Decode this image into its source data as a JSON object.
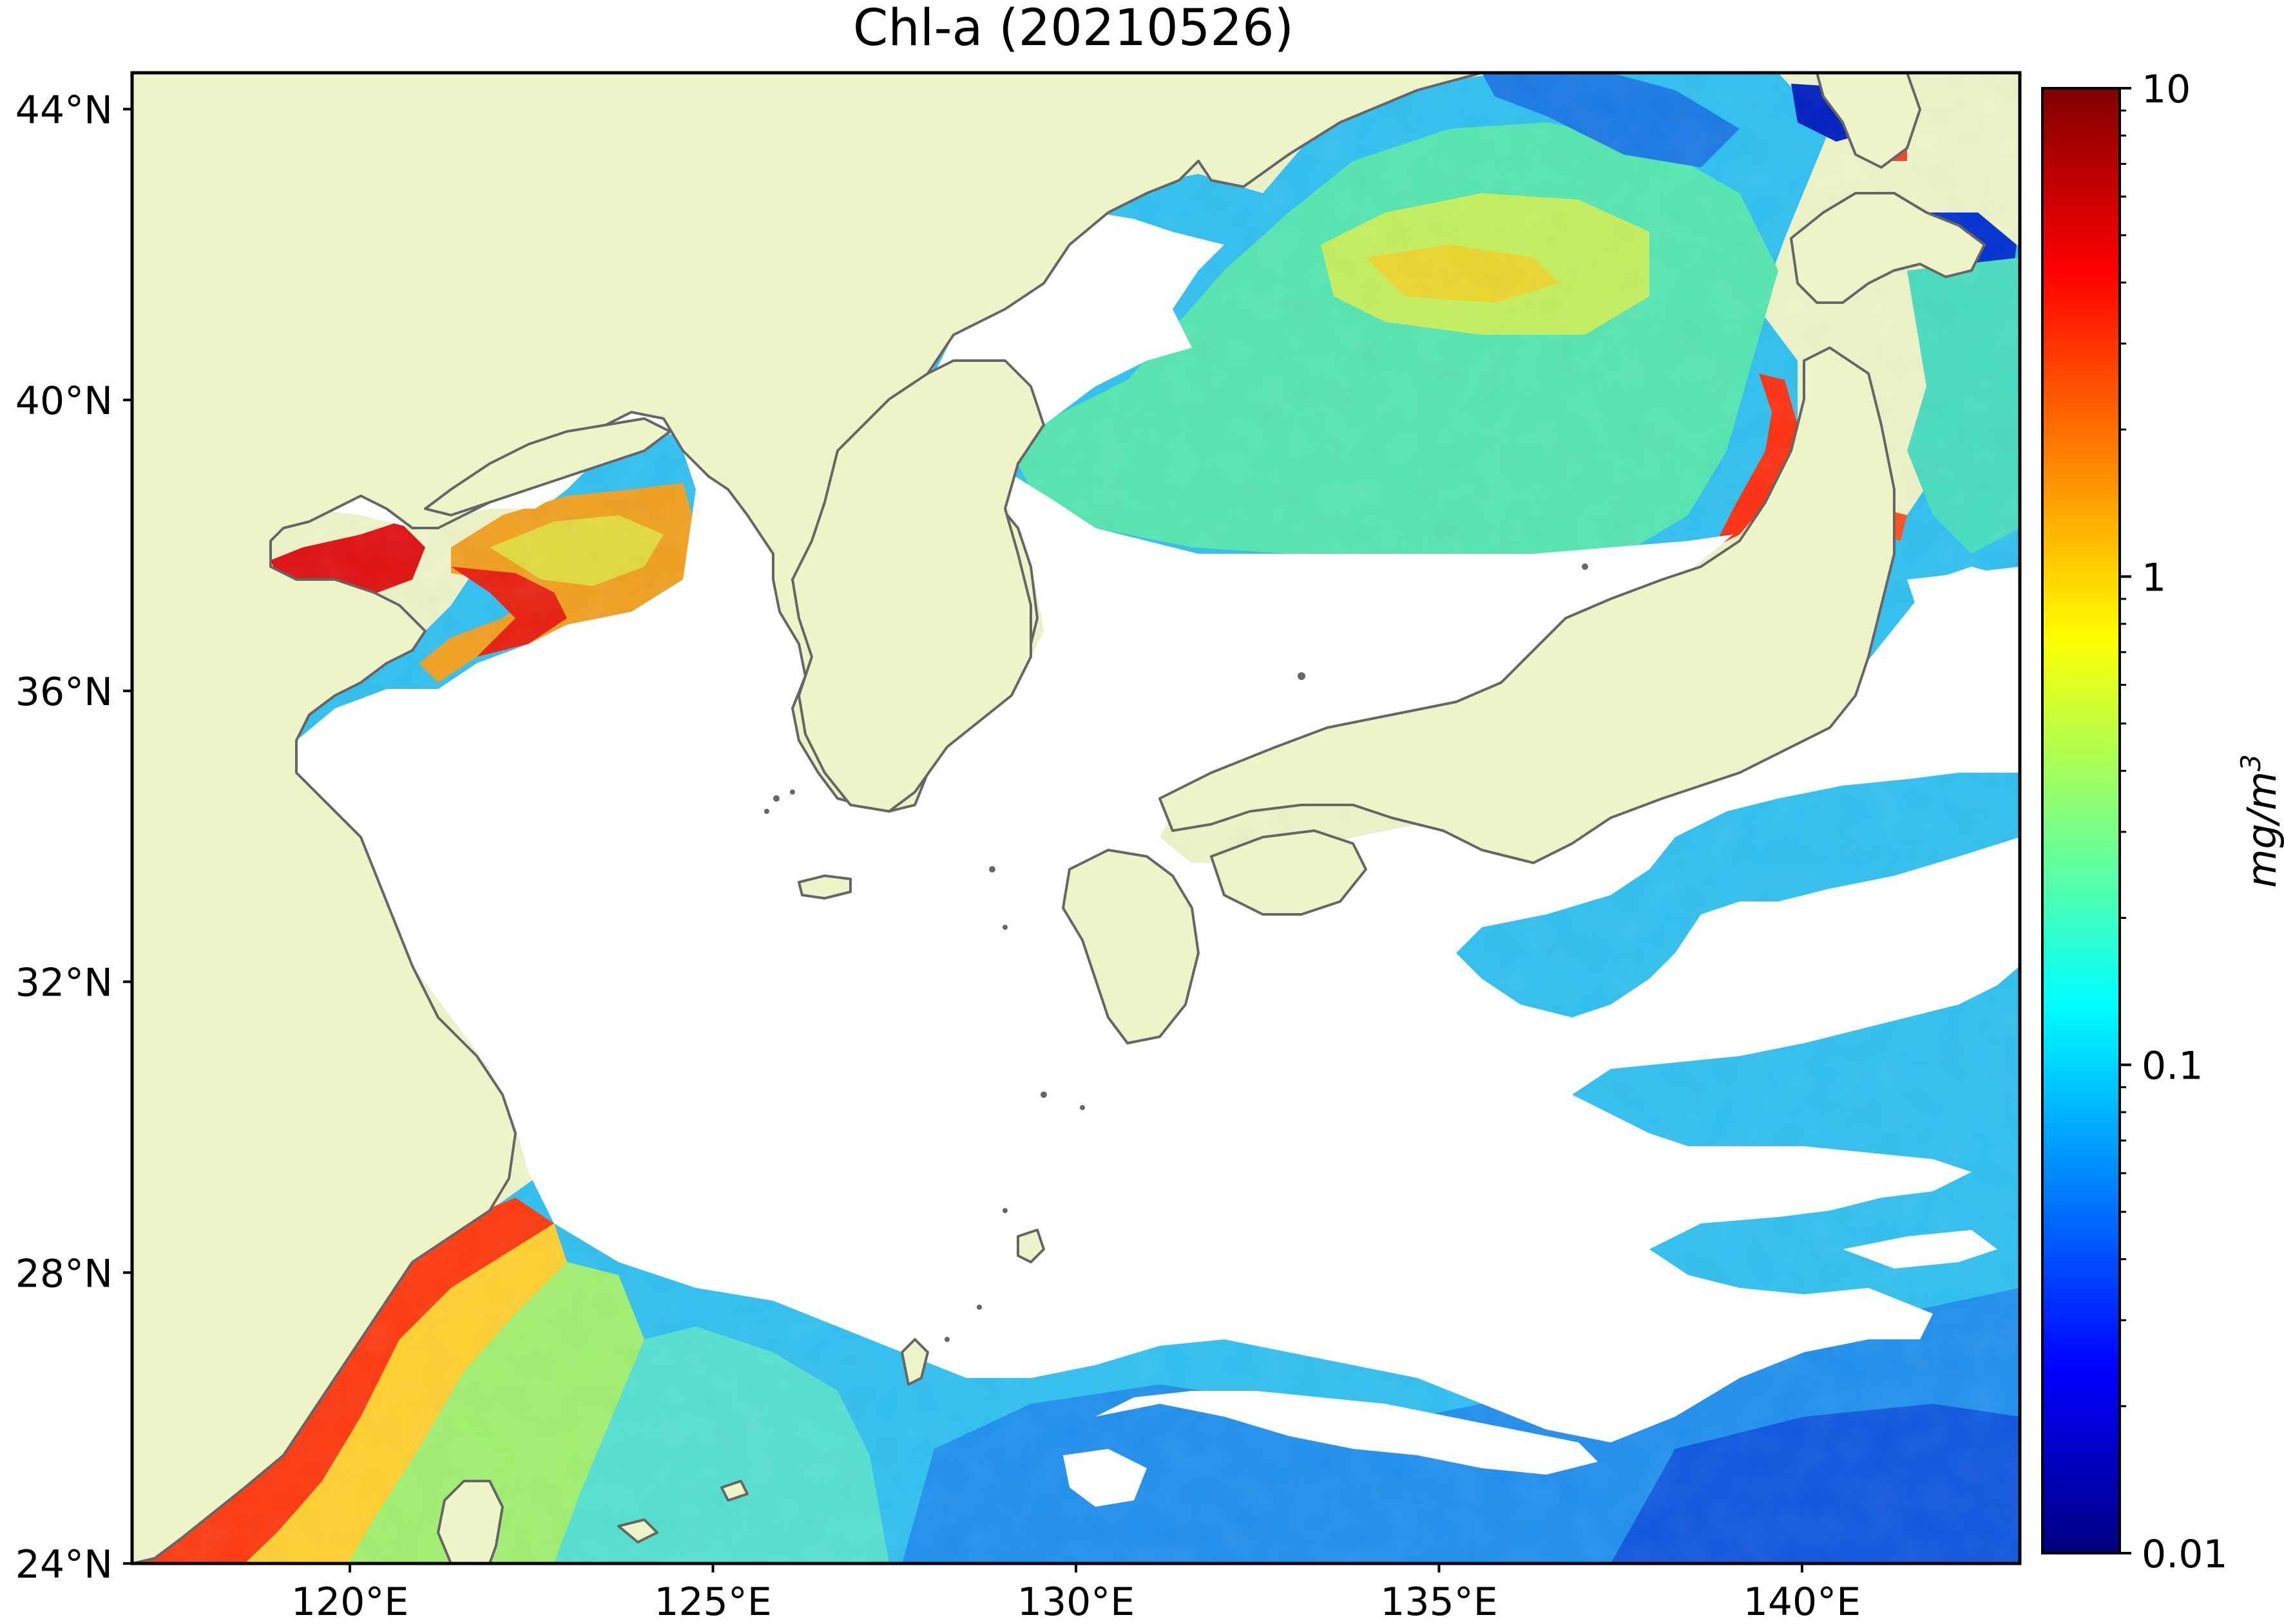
{
  "title": "Chl-a (20210526)",
  "map": {
    "lon_range": [
      117,
      143
    ],
    "lat_range": [
      24,
      44.5
    ],
    "lat_ticks": [
      {
        "value": 44,
        "label": "44°N"
      },
      {
        "value": 40,
        "label": "40°N"
      },
      {
        "value": 36,
        "label": "36°N"
      },
      {
        "value": 32,
        "label": "32°N"
      },
      {
        "value": 28,
        "label": "28°N"
      },
      {
        "value": 24,
        "label": "24°N"
      }
    ],
    "lon_ticks": [
      {
        "value": 120,
        "label": "120°E"
      },
      {
        "value": 125,
        "label": "125°E"
      },
      {
        "value": 130,
        "label": "130°E"
      },
      {
        "value": 135,
        "label": "135°E"
      },
      {
        "value": 140,
        "label": "140°E"
      }
    ],
    "colors": {
      "land": "#eef4c8",
      "coast": "#666666",
      "no_data": "#ffffff"
    }
  },
  "colorbar": {
    "label_main": "mg/m",
    "label_sup": "3",
    "scale": "log",
    "range": [
      0.01,
      10
    ],
    "ticks": [
      {
        "value": 10,
        "label": "10"
      },
      {
        "value": 1,
        "label": "1"
      },
      {
        "value": 0.1,
        "label": "0.1"
      },
      {
        "value": 0.01,
        "label": "0.01"
      }
    ],
    "colormap": "jet",
    "stops": [
      "#000080",
      "#0000ff",
      "#0080ff",
      "#00ffff",
      "#80ff80",
      "#ffff00",
      "#ff8000",
      "#ff0000",
      "#800000"
    ]
  }
}
